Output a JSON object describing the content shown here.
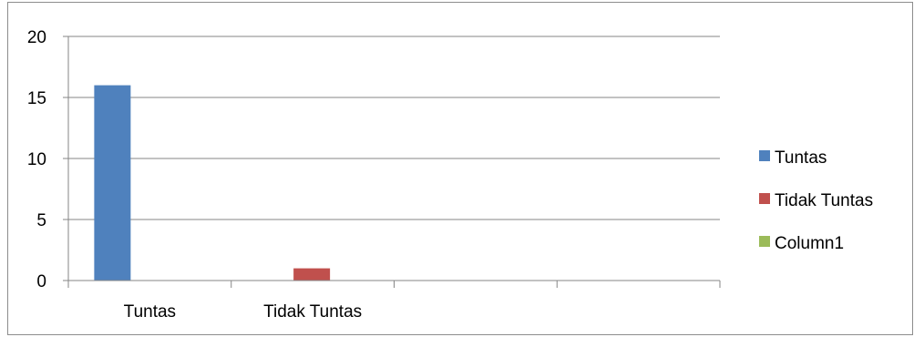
{
  "chart_data": {
    "type": "bar",
    "categories": [
      "Tuntas",
      "Tidak Tuntas",
      "",
      ""
    ],
    "series": [
      {
        "name": "Tuntas",
        "color": "#4f81bd",
        "values": [
          16,
          0,
          0,
          0
        ]
      },
      {
        "name": "Tidak Tuntas",
        "color": "#c0504d",
        "values": [
          0,
          1,
          0,
          0
        ]
      },
      {
        "name": "Column1",
        "color": "#9bbb59",
        "values": [
          0,
          0,
          0,
          0
        ]
      }
    ],
    "ylim": [
      0,
      20
    ],
    "yticks": [
      "0",
      "5",
      "10",
      "15",
      "20"
    ],
    "grid": true,
    "legend_position": "right",
    "title": "",
    "xlabel": "",
    "ylabel": ""
  }
}
